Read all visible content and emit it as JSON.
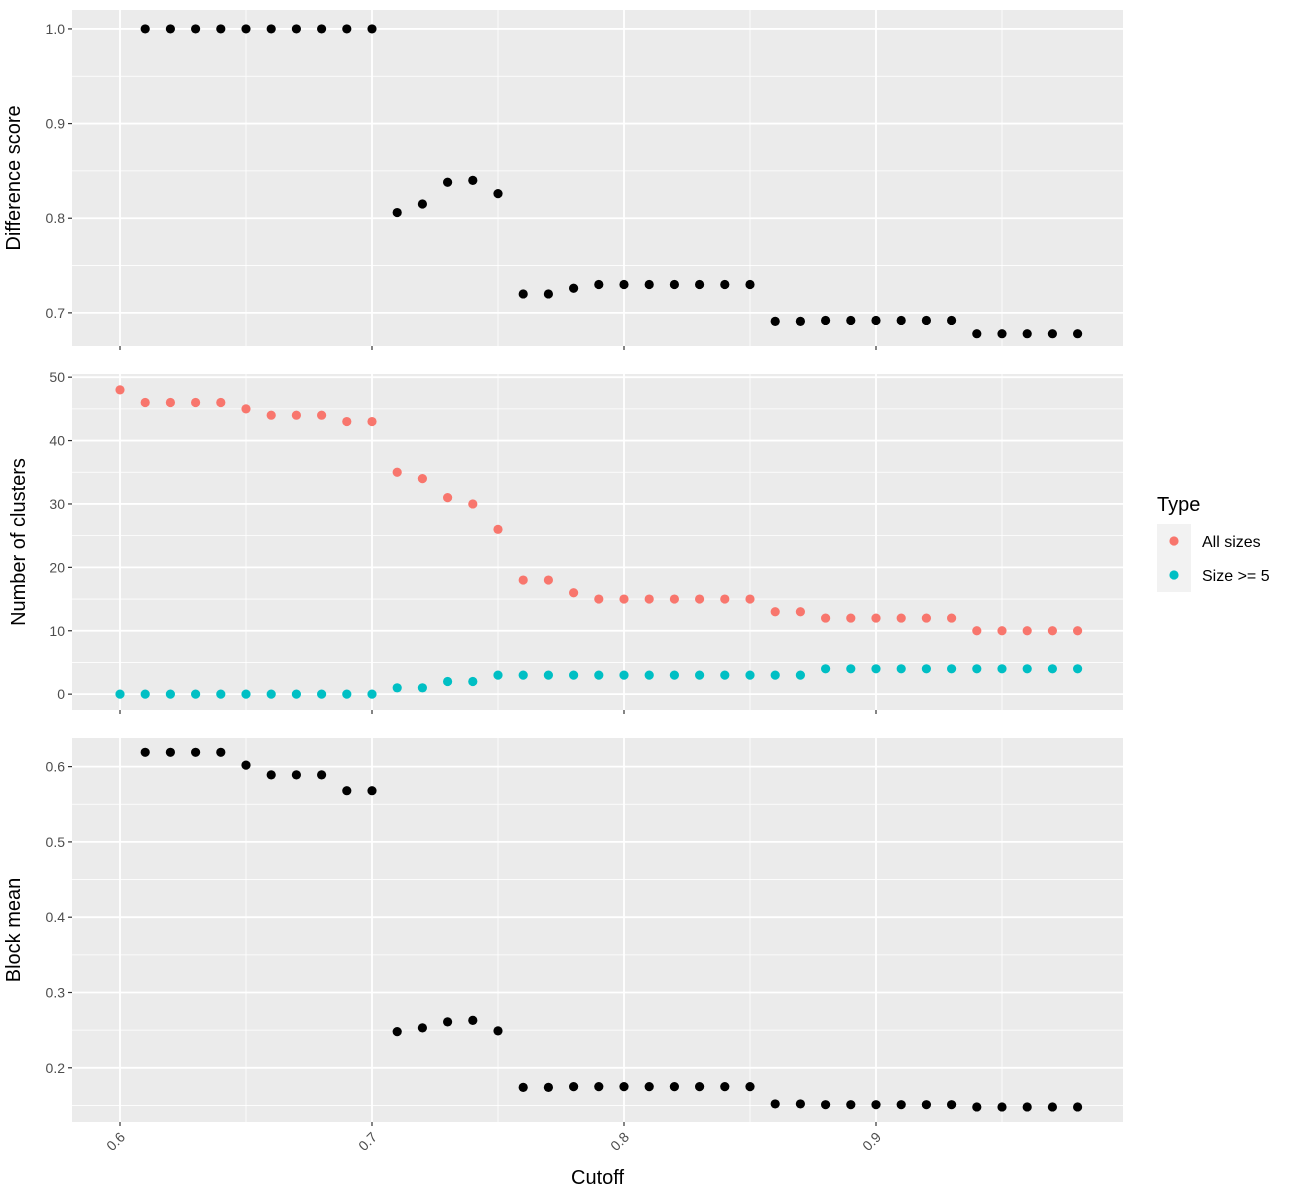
{
  "chart_data": {
    "type": "scatter",
    "xlabel": "Cutoff",
    "xlim": [
      0.6,
      0.97
    ],
    "xticks": [
      "0.6",
      "0.7",
      "0.8",
      "0.9"
    ],
    "x": [
      0.6,
      0.61,
      0.62,
      0.63,
      0.64,
      0.65,
      0.66,
      0.67,
      0.68,
      0.69,
      0.7,
      0.71,
      0.72,
      0.73,
      0.74,
      0.75,
      0.76,
      0.77,
      0.78,
      0.79,
      0.8,
      0.81,
      0.82,
      0.83,
      0.84,
      0.85,
      0.86,
      0.87,
      0.88,
      0.89,
      0.9,
      0.91,
      0.92,
      0.93,
      0.94,
      0.95,
      0.96,
      0.97,
      0.98
    ],
    "grid": true,
    "panels": [
      {
        "ylabel": "Difference score",
        "ylim": [
          0.665,
          1.02
        ],
        "yticks": [
          "0.7",
          "0.8",
          "0.9",
          "1.0"
        ],
        "series": [
          {
            "color": "#000000",
            "x": [
              0.61,
              0.62,
              0.63,
              0.64,
              0.65,
              0.66,
              0.67,
              0.68,
              0.69,
              0.7,
              0.71,
              0.72,
              0.73,
              0.74,
              0.75,
              0.76,
              0.77,
              0.78,
              0.79,
              0.8,
              0.81,
              0.82,
              0.83,
              0.84,
              0.85,
              0.86,
              0.87,
              0.88,
              0.89,
              0.9,
              0.91,
              0.92,
              0.93,
              0.94,
              0.95,
              0.96,
              0.97,
              0.98
            ],
            "values": [
              1.0,
              1.0,
              1.0,
              1.0,
              1.0,
              1.0,
              1.0,
              1.0,
              1.0,
              1.0,
              0.806,
              0.815,
              0.838,
              0.84,
              0.826,
              0.72,
              0.72,
              0.726,
              0.73,
              0.73,
              0.73,
              0.73,
              0.73,
              0.73,
              0.73,
              0.691,
              0.691,
              0.692,
              0.692,
              0.692,
              0.692,
              0.692,
              0.692,
              0.678,
              0.678,
              0.678,
              0.678,
              0.678
            ]
          }
        ]
      },
      {
        "ylabel": "Number of clusters",
        "ylim": [
          -2.5,
          50.5
        ],
        "yticks": [
          "0",
          "10",
          "20",
          "30",
          "40",
          "50"
        ],
        "series": [
          {
            "name": "All sizes",
            "color": "#F8766D",
            "x": [
              0.6,
              0.61,
              0.62,
              0.63,
              0.64,
              0.65,
              0.66,
              0.67,
              0.68,
              0.69,
              0.7,
              0.71,
              0.72,
              0.73,
              0.74,
              0.75,
              0.76,
              0.77,
              0.78,
              0.79,
              0.8,
              0.81,
              0.82,
              0.83,
              0.84,
              0.85,
              0.86,
              0.87,
              0.88,
              0.89,
              0.9,
              0.91,
              0.92,
              0.93,
              0.94,
              0.95,
              0.96,
              0.97,
              0.98
            ],
            "values": [
              48,
              46,
              46,
              46,
              46,
              45,
              44,
              44,
              44,
              43,
              43,
              35,
              34,
              31,
              30,
              26,
              18,
              18,
              16,
              15,
              15,
              15,
              15,
              15,
              15,
              15,
              13,
              13,
              12,
              12,
              12,
              12,
              12,
              12,
              10,
              10,
              10,
              10,
              10
            ]
          },
          {
            "name": "Size >= 5",
            "color": "#00BFC4",
            "x": [
              0.6,
              0.61,
              0.62,
              0.63,
              0.64,
              0.65,
              0.66,
              0.67,
              0.68,
              0.69,
              0.7,
              0.71,
              0.72,
              0.73,
              0.74,
              0.75,
              0.76,
              0.77,
              0.78,
              0.79,
              0.8,
              0.81,
              0.82,
              0.83,
              0.84,
              0.85,
              0.86,
              0.87,
              0.88,
              0.89,
              0.9,
              0.91,
              0.92,
              0.93,
              0.94,
              0.95,
              0.96,
              0.97,
              0.98
            ],
            "values": [
              0,
              0,
              0,
              0,
              0,
              0,
              0,
              0,
              0,
              0,
              0,
              1,
              1,
              2,
              2,
              3,
              3,
              3,
              3,
              3,
              3,
              3,
              3,
              3,
              3,
              3,
              3,
              3,
              4,
              4,
              4,
              4,
              4,
              4,
              4,
              4,
              4,
              4,
              4
            ]
          }
        ]
      },
      {
        "ylabel": "Block mean",
        "ylim": [
          0.128,
          0.638
        ],
        "yticks": [
          "0.2",
          "0.3",
          "0.4",
          "0.5",
          "0.6"
        ],
        "series": [
          {
            "color": "#000000",
            "x": [
              0.61,
              0.62,
              0.63,
              0.64,
              0.65,
              0.66,
              0.67,
              0.68,
              0.69,
              0.7,
              0.71,
              0.72,
              0.73,
              0.74,
              0.75,
              0.76,
              0.77,
              0.78,
              0.79,
              0.8,
              0.81,
              0.82,
              0.83,
              0.84,
              0.85,
              0.86,
              0.87,
              0.88,
              0.89,
              0.9,
              0.91,
              0.92,
              0.93,
              0.94,
              0.95,
              0.96,
              0.97,
              0.98
            ],
            "values": [
              0.619,
              0.619,
              0.619,
              0.619,
              0.602,
              0.589,
              0.589,
              0.589,
              0.568,
              0.568,
              0.248,
              0.253,
              0.261,
              0.263,
              0.249,
              0.174,
              0.174,
              0.175,
              0.175,
              0.175,
              0.175,
              0.175,
              0.175,
              0.175,
              0.175,
              0.152,
              0.152,
              0.151,
              0.151,
              0.151,
              0.151,
              0.151,
              0.151,
              0.148,
              0.148,
              0.148,
              0.148,
              0.148
            ]
          }
        ]
      }
    ],
    "legend": {
      "title": "Type",
      "placement": "right",
      "entries": [
        {
          "label": "All sizes",
          "color": "#F8766D"
        },
        {
          "label": "Size >= 5",
          "color": "#00BFC4"
        }
      ]
    }
  }
}
